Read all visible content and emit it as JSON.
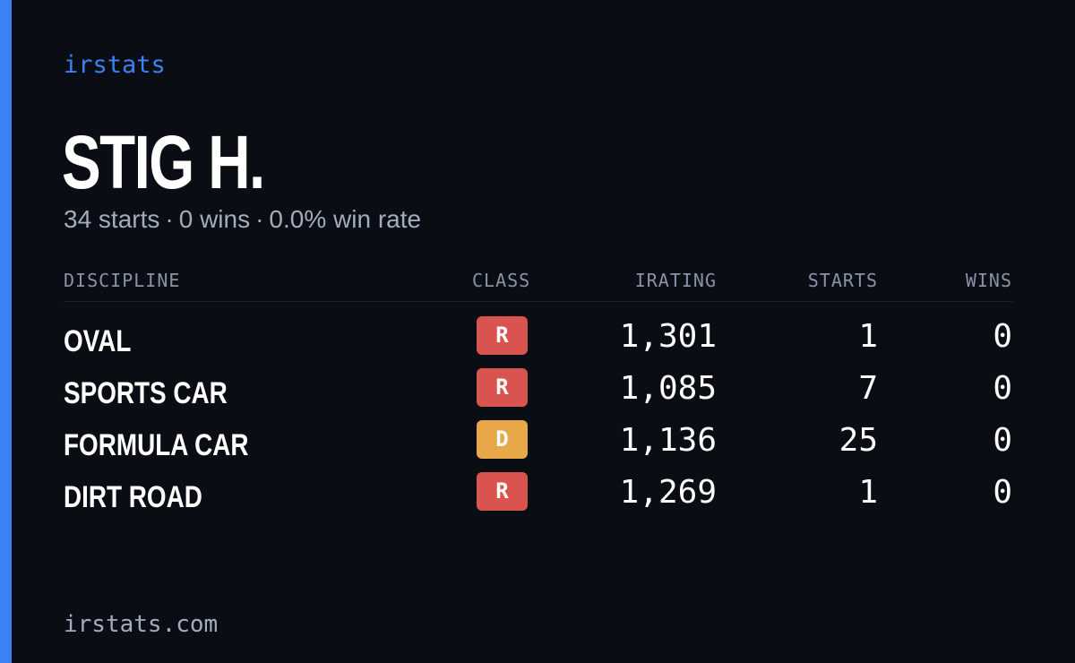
{
  "brand": "irstats",
  "driver": {
    "name": "STIG H.",
    "starts_text": "34 starts",
    "wins_text": "0 wins",
    "winrate_text": "0.0% win rate",
    "separator": "·"
  },
  "table": {
    "headers": {
      "discipline": "DISCIPLINE",
      "class": "CLASS",
      "irating": "IRATING",
      "starts": "STARTS",
      "wins": "WINS"
    },
    "rows": [
      {
        "discipline": "OVAL",
        "class": "R",
        "irating": "1,301",
        "starts": "1",
        "wins": "0"
      },
      {
        "discipline": "SPORTS CAR",
        "class": "R",
        "irating": "1,085",
        "starts": "7",
        "wins": "0"
      },
      {
        "discipline": "FORMULA CAR",
        "class": "D",
        "irating": "1,136",
        "starts": "25",
        "wins": "0"
      },
      {
        "discipline": "DIRT ROAD",
        "class": "R",
        "irating": "1,269",
        "starts": "1",
        "wins": "0"
      }
    ]
  },
  "footer": {
    "domain": "irstats.com"
  },
  "colors": {
    "background": "#0a0d14",
    "accent": "#3b82f6",
    "class_r": "#d9534f",
    "class_d": "#e8a84a",
    "muted_text": "#a3acbf"
  }
}
